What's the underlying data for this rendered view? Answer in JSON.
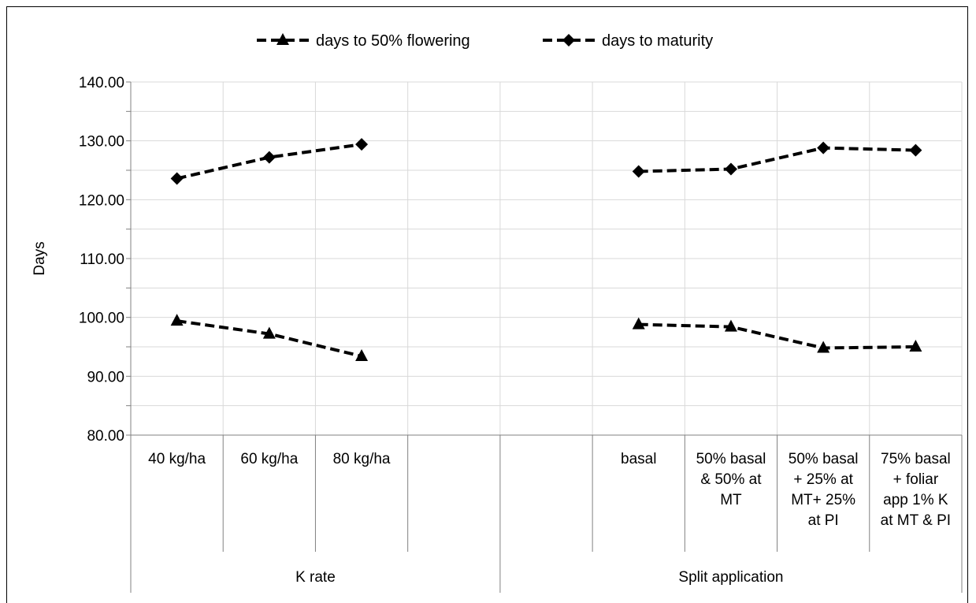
{
  "chart_data": {
    "type": "line",
    "ylabel": "Days",
    "ylim": [
      80,
      140
    ],
    "y_ticks": [
      "80.00",
      "90.00",
      "100.00",
      "110.00",
      "120.00",
      "130.00",
      "140.00"
    ],
    "grid": true,
    "legend_position": "top",
    "categories": [
      "40 kg/ha",
      "60 kg/ha",
      "80 kg/ha",
      "",
      "",
      "basal",
      "50% basal & 50% at MT",
      "50% basal + 25% at MT+ 25% at PI",
      "75% basal + foliar app 1% K at MT & PI"
    ],
    "category_label_lines": [
      [
        "40 kg/ha"
      ],
      [
        "60 kg/ha"
      ],
      [
        "80 kg/ha"
      ],
      [],
      [],
      [
        "basal"
      ],
      [
        "50% basal",
        "& 50% at",
        "MT"
      ],
      [
        "50% basal",
        "+ 25% at",
        "MT+  25%",
        "at PI"
      ],
      [
        "75% basal",
        "+ foliar",
        "app 1% K",
        "at MT & PI"
      ]
    ],
    "groups": [
      {
        "label": "K rate",
        "start": 0,
        "end": 3
      },
      {
        "label": "Split application",
        "start": 4,
        "end": 8
      }
    ],
    "series": [
      {
        "name": "days to 50% flowering",
        "marker": "triangle",
        "color": "#000000",
        "values": [
          99.4,
          97.2,
          93.4,
          null,
          null,
          98.8,
          98.4,
          94.8,
          95.0
        ]
      },
      {
        "name": "days to maturity",
        "marker": "diamond",
        "color": "#000000",
        "values": [
          123.6,
          127.2,
          129.4,
          null,
          null,
          124.8,
          125.2,
          128.8,
          128.4
        ]
      }
    ]
  }
}
